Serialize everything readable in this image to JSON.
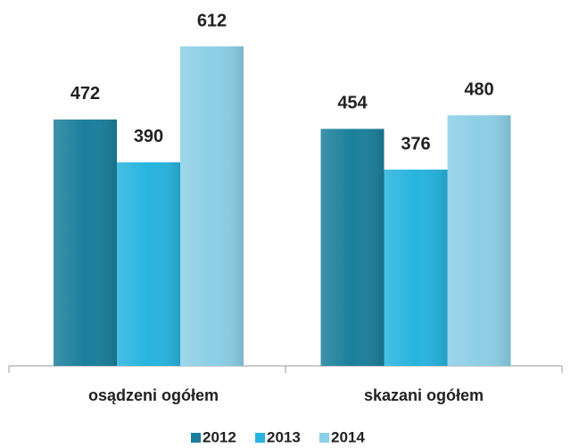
{
  "chart_data": {
    "type": "bar",
    "categories": [
      "osądzeni ogółem",
      "skazani ogółem"
    ],
    "series": [
      {
        "name": "2012",
        "color": "#1b7f9b",
        "values": [
          472,
          454
        ]
      },
      {
        "name": "2013",
        "color": "#27b4df",
        "values": [
          390,
          376
        ]
      },
      {
        "name": "2014",
        "color": "#8ccfe6",
        "values": [
          612,
          480
        ]
      }
    ],
    "legend": "bottom"
  }
}
